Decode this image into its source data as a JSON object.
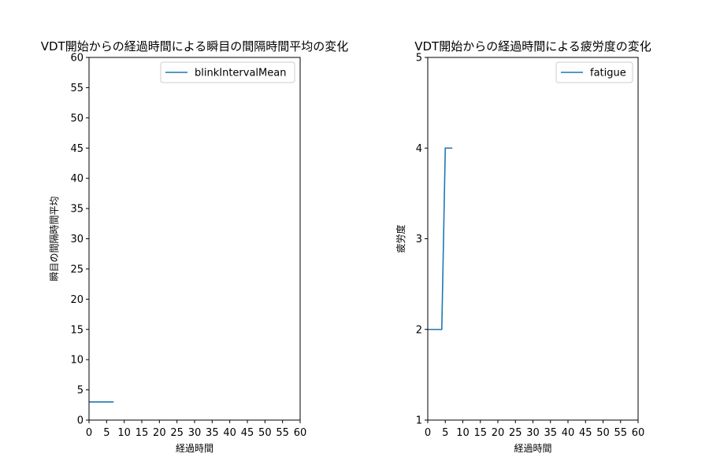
{
  "chart_data": [
    {
      "type": "line",
      "title": "VDT開始からの経過時間による瞬目の間隔時間平均の変化",
      "xlabel": "経過時間",
      "ylabel": "瞬目の間隔時間平均",
      "xlim": [
        0,
        60
      ],
      "ylim": [
        0,
        60
      ],
      "xticks": [
        0,
        5,
        10,
        15,
        20,
        25,
        30,
        35,
        40,
        45,
        50,
        55,
        60
      ],
      "yticks": [
        0,
        5,
        10,
        15,
        20,
        25,
        30,
        35,
        40,
        45,
        50,
        55,
        60
      ],
      "legend_position": "top-right",
      "grid": false,
      "series": [
        {
          "name": "blinkIntervalMean",
          "color": "#1f77b4",
          "x": [
            0,
            7
          ],
          "y": [
            3,
            3
          ]
        }
      ]
    },
    {
      "type": "line",
      "title": "VDT開始からの経過時間による疲労度の変化",
      "xlabel": "経過時間",
      "ylabel": "疲労度",
      "xlim": [
        0,
        60
      ],
      "ylim": [
        1,
        5
      ],
      "xticks": [
        0,
        5,
        10,
        15,
        20,
        25,
        30,
        35,
        40,
        45,
        50,
        55,
        60
      ],
      "yticks": [
        1,
        2,
        3,
        4,
        5
      ],
      "legend_position": "top-right",
      "grid": false,
      "series": [
        {
          "name": "fatigue",
          "color": "#1f77b4",
          "x": [
            0,
            4,
            5,
            7
          ],
          "y": [
            2,
            2,
            4,
            4
          ]
        }
      ]
    }
  ]
}
